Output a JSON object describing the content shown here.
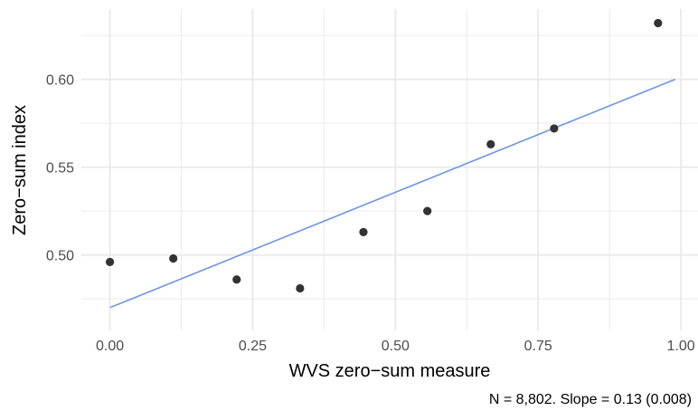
{
  "chart_data": {
    "type": "scatter",
    "title": "",
    "xlabel": "WVS zero−sum measure",
    "ylabel": "Zero−sum index",
    "caption": "N = 8,802. Slope = 0.13 (0.008)",
    "xlim": [
      -0.05,
      1.03
    ],
    "ylim": [
      0.457,
      0.64
    ],
    "x_ticks": [
      0.0,
      0.25,
      0.5,
      0.75,
      1.0
    ],
    "x_tick_labels": [
      "0.00",
      "0.25",
      "0.50",
      "0.75",
      "1.00"
    ],
    "y_ticks": [
      0.5,
      0.55,
      0.6
    ],
    "y_tick_labels": [
      "0.50",
      "0.55",
      "0.60"
    ],
    "grid": true,
    "points": [
      {
        "x": 0.0,
        "y": 0.496
      },
      {
        "x": 0.111,
        "y": 0.498
      },
      {
        "x": 0.222,
        "y": 0.486
      },
      {
        "x": 0.333,
        "y": 0.481
      },
      {
        "x": 0.444,
        "y": 0.513
      },
      {
        "x": 0.556,
        "y": 0.525
      },
      {
        "x": 0.667,
        "y": 0.563
      },
      {
        "x": 0.778,
        "y": 0.572
      },
      {
        "x": 0.96,
        "y": 0.632
      }
    ],
    "fit_line": {
      "x": [
        0.0,
        0.99
      ],
      "y": [
        0.47,
        0.6
      ]
    },
    "colors": {
      "points": "#333333",
      "fit_line": "#6f94e8",
      "grid": "#ebebeb"
    }
  }
}
